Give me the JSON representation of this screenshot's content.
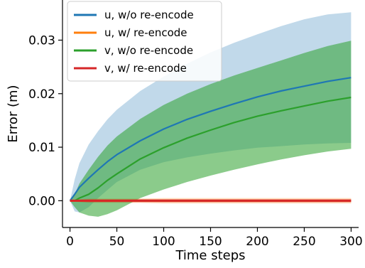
{
  "chart_data": {
    "type": "line",
    "xlabel": "Time steps",
    "ylabel": "Error (m)",
    "xlim": [
      -8,
      308
    ],
    "ylim": [
      -0.005,
      0.0375
    ],
    "xticks": [
      0,
      50,
      100,
      150,
      200,
      250,
      300
    ],
    "xtick_labels": [
      "0",
      "50",
      "100",
      "150",
      "200",
      "250",
      "300"
    ],
    "yticks": [
      0.0,
      0.01,
      0.02,
      0.03
    ],
    "ytick_labels": [
      "0.00",
      "0.01",
      "0.02",
      "0.03"
    ],
    "grid": false,
    "legend_position": "top-left",
    "x": [
      0,
      5,
      10,
      20,
      30,
      40,
      50,
      75,
      100,
      125,
      150,
      175,
      200,
      225,
      250,
      275,
      300
    ],
    "series": [
      {
        "name": "u, w/o re-encode",
        "color": "#1f77b4",
        "values": [
          0.0,
          0.0012,
          0.0025,
          0.0042,
          0.0058,
          0.0073,
          0.0086,
          0.0112,
          0.0134,
          0.0152,
          0.0167,
          0.0181,
          0.0194,
          0.0205,
          0.0214,
          0.0223,
          0.023
        ],
        "lower": [
          0.0,
          -0.002,
          -0.0022,
          -0.0012,
          0.0005,
          0.002,
          0.0035,
          0.0058,
          0.0072,
          0.0081,
          0.0088,
          0.0094,
          0.0099,
          0.0102,
          0.0105,
          0.0107,
          0.0108
        ],
        "upper": [
          0.0,
          0.004,
          0.007,
          0.0105,
          0.013,
          0.0152,
          0.017,
          0.0205,
          0.0232,
          0.0256,
          0.0277,
          0.0295,
          0.0311,
          0.0326,
          0.0339,
          0.0348,
          0.0352
        ]
      },
      {
        "name": "u, w/ re-encode",
        "color": "#ff7f0e",
        "values": [
          0.0,
          0.0,
          0.0,
          0.0,
          0.0,
          0.0,
          0.0,
          0.0,
          0.0,
          0.0,
          0.0,
          0.0,
          0.0,
          0.0,
          0.0,
          0.0,
          0.0
        ],
        "lower": [
          0.0,
          -0.0002,
          -0.0003,
          -0.0004,
          -0.0004,
          -0.0004,
          -0.0004,
          -0.0004,
          -0.0005,
          -0.0005,
          -0.0005,
          -0.0005,
          -0.0005,
          -0.0005,
          -0.0005,
          -0.0005,
          -0.0005
        ],
        "upper": [
          0.0,
          0.0002,
          0.0003,
          0.0004,
          0.0004,
          0.0004,
          0.0004,
          0.0004,
          0.0005,
          0.0005,
          0.0005,
          0.0005,
          0.0005,
          0.0005,
          0.0005,
          0.0005,
          0.0005
        ]
      },
      {
        "name": "v, w/o re-encode",
        "color": "#2ca02c",
        "values": [
          0.0,
          0.0,
          0.0005,
          0.0012,
          0.0024,
          0.0038,
          0.005,
          0.0078,
          0.0099,
          0.0117,
          0.0132,
          0.0146,
          0.0158,
          0.0168,
          0.0177,
          0.0186,
          0.0193
        ],
        "lower": [
          0.0,
          -0.0012,
          -0.0022,
          -0.0028,
          -0.003,
          -0.0025,
          -0.0018,
          0.0005,
          0.0021,
          0.0035,
          0.0047,
          0.0058,
          0.0068,
          0.0077,
          0.0085,
          0.0092,
          0.0097
        ],
        "upper": [
          0.0,
          0.0012,
          0.0032,
          0.0058,
          0.0082,
          0.0103,
          0.012,
          0.0153,
          0.0179,
          0.02,
          0.0218,
          0.0234,
          0.0248,
          0.0262,
          0.0276,
          0.0289,
          0.0299
        ]
      },
      {
        "name": "v, w/ re-encode",
        "color": "#d62728",
        "values": [
          0.0,
          0.0,
          0.0,
          0.0,
          0.0,
          0.0,
          0.0,
          0.0,
          0.0,
          0.0,
          0.0,
          0.0,
          0.0,
          0.0,
          0.0,
          0.0,
          0.0
        ],
        "lower": [
          0.0,
          -0.0001,
          -0.0002,
          -0.0003,
          -0.0003,
          -0.0003,
          -0.0003,
          -0.0003,
          -0.0003,
          -0.0003,
          -0.0003,
          -0.0003,
          -0.0003,
          -0.0003,
          -0.0003,
          -0.0003,
          -0.0003
        ],
        "upper": [
          0.0,
          0.0001,
          0.0002,
          0.0003,
          0.0003,
          0.0003,
          0.0003,
          0.0003,
          0.0003,
          0.0003,
          0.0003,
          0.0003,
          0.0003,
          0.0003,
          0.0003,
          0.0003,
          0.0003
        ]
      }
    ]
  }
}
